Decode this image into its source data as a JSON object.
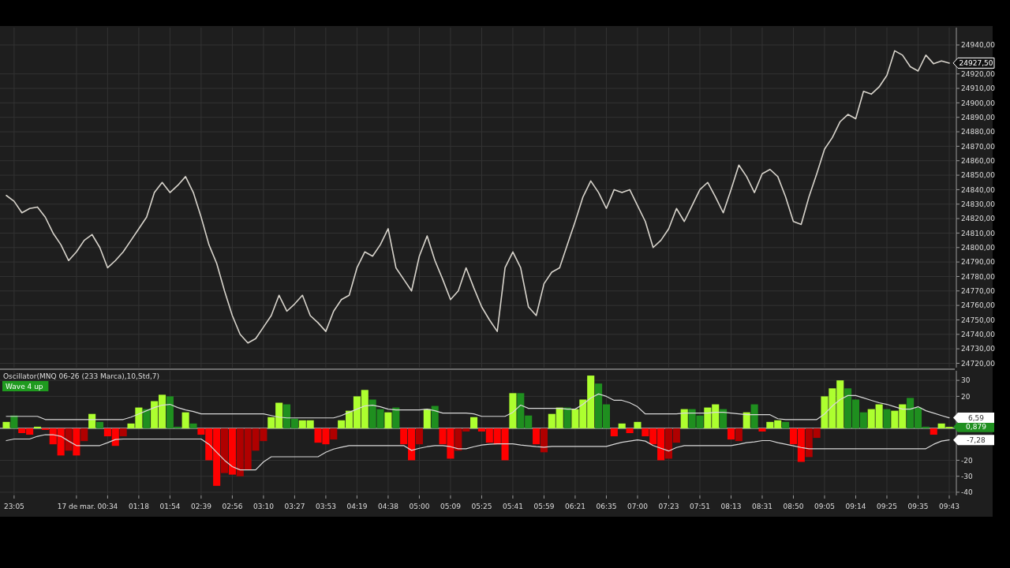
{
  "chart_data": [
    {
      "type": "line",
      "categories": [
        null,
        null,
        null,
        null,
        null,
        null,
        null,
        null,
        null,
        null,
        null,
        null,
        null,
        null,
        null,
        null,
        null,
        null,
        null,
        null,
        null,
        null,
        null,
        null,
        null,
        null,
        null,
        null,
        null,
        null,
        null,
        null,
        null,
        null,
        null,
        null,
        null,
        null,
        null,
        null,
        null,
        null,
        null,
        null,
        null,
        null,
        null,
        null,
        null,
        null,
        null,
        null,
        null,
        null,
        null,
        null,
        null,
        null,
        null,
        null,
        null,
        null,
        null,
        null,
        null,
        null,
        null,
        null,
        null,
        null,
        null,
        null,
        null,
        null,
        null,
        null,
        null,
        null,
        null,
        null,
        null,
        null,
        null,
        null,
        null,
        null,
        null,
        null,
        null,
        null,
        null,
        null,
        null,
        null,
        null,
        null,
        null,
        null,
        null,
        null,
        null,
        null,
        null,
        null,
        null,
        null,
        null,
        null,
        null,
        null,
        null,
        null,
        null,
        null,
        null,
        null,
        null,
        null,
        null,
        null,
        null,
        null
      ],
      "series": [
        {
          "color": "#d8d4cc",
          "values": [
            24836,
            24832,
            24824,
            24827,
            24828,
            24821,
            24810,
            24802,
            24791,
            24797,
            24805,
            24809,
            24800,
            24786,
            24791,
            24797,
            24805,
            24813,
            24821,
            24838,
            24845,
            24838,
            24843,
            24849,
            24838,
            24821,
            24802,
            24789,
            24770,
            24753,
            24740,
            24734,
            24737,
            24745,
            24753,
            24767,
            24756,
            24761,
            24767,
            24753,
            24748,
            24742,
            24756,
            24764,
            24767,
            24786,
            24797,
            24794,
            24802,
            24813,
            24786,
            24778,
            24770,
            24794,
            24808,
            24791,
            24778,
            24764,
            24770,
            24786,
            24772,
            24759,
            24750,
            24742,
            24786,
            24797,
            24786,
            24759,
            24753,
            24775,
            24783,
            24786,
            24802,
            24818,
            24835,
            24846,
            24838,
            24827,
            24840,
            24838,
            24840,
            24829,
            24818,
            24800,
            24805,
            24813,
            24827,
            24818,
            24829,
            24840,
            24845,
            24835,
            24824,
            24840,
            24857,
            24849,
            24838,
            24851,
            24854,
            24849,
            24835,
            24818,
            24816,
            24835,
            24851,
            24868,
            24876,
            24887,
            24892,
            24889,
            24908,
            24906,
            24911,
            24919,
            24936,
            24933,
            24925,
            24922,
            24933,
            24927,
            24929,
            24927.5
          ]
        }
      ],
      "ylim": [
        24717,
        24952
      ],
      "yticks": [
        {
          "value": 24720,
          "label": "24720,00"
        },
        {
          "value": 24730,
          "label": "24730,00"
        },
        {
          "value": 24740,
          "label": "24740,00"
        },
        {
          "value": 24750,
          "label": "24750,00"
        },
        {
          "value": 24760,
          "label": "24760,00"
        },
        {
          "value": 24770,
          "label": "24770,00"
        },
        {
          "value": 24780,
          "label": "24780,00"
        },
        {
          "value": 24790,
          "label": "24790,00"
        },
        {
          "value": 24800,
          "label": "24800,00"
        },
        {
          "value": 24810,
          "label": "24810,00"
        },
        {
          "value": 24820,
          "label": "24820,00"
        },
        {
          "value": 24830,
          "label": "24830,00"
        },
        {
          "value": 24840,
          "label": "24840,00"
        },
        {
          "value": 24850,
          "label": "24850,00"
        },
        {
          "value": 24860,
          "label": "24860,00"
        },
        {
          "value": 24870,
          "label": "24870,00"
        },
        {
          "value": 24880,
          "label": "24880,00"
        },
        {
          "value": 24890,
          "label": "24890,00"
        },
        {
          "value": 24900,
          "label": "24900,00"
        },
        {
          "value": 24910,
          "label": "24910,00"
        },
        {
          "value": 24920,
          "label": "24920,00"
        },
        {
          "value": 24940,
          "label": "24940,00"
        }
      ],
      "grid": true,
      "tick_labels": "y",
      "annotations": [
        "24927,50"
      ]
    },
    {
      "type": "bar",
      "title": "Oscillator(MNQ 06-26 (233 Marca),10,Std,7)",
      "categories": [
        null,
        "23:05",
        null,
        null,
        null,
        null,
        null,
        null,
        null,
        "17 de mar.",
        null,
        null,
        null,
        "00:34",
        null,
        null,
        null,
        "01:18",
        null,
        null,
        null,
        "01:54",
        null,
        null,
        null,
        "02:39",
        null,
        null,
        null,
        "02:56",
        null,
        null,
        null,
        "03:10",
        null,
        null,
        null,
        "03:27",
        null,
        null,
        null,
        "03:53",
        null,
        null,
        null,
        "04:19",
        null,
        null,
        null,
        "04:38",
        null,
        null,
        null,
        "05:00",
        null,
        null,
        null,
        "05:09",
        null,
        null,
        null,
        "05:25",
        null,
        null,
        null,
        "05:41",
        null,
        null,
        null,
        "05:59",
        null,
        null,
        null,
        "06:21",
        null,
        null,
        null,
        "06:35",
        null,
        null,
        null,
        "07:00",
        null,
        null,
        null,
        "07:23",
        null,
        null,
        null,
        "07:51",
        null,
        null,
        null,
        "08:13",
        null,
        null,
        null,
        "08:31",
        null,
        null,
        null,
        "08:50",
        null,
        null,
        null,
        "09:05",
        null,
        null,
        null,
        "09:14",
        null,
        null,
        null,
        "09:25",
        null,
        null,
        null,
        "09:35",
        null,
        null,
        null,
        "09:43"
      ],
      "series": [
        {
          "values": [
            4,
            8,
            -3,
            -4,
            1,
            -1,
            -10,
            -17,
            -14,
            -17,
            -8,
            9,
            4,
            -5,
            -11,
            -5,
            3,
            13,
            12,
            17,
            21,
            20,
            1,
            10,
            3,
            -4,
            -20,
            -36,
            -28,
            -29,
            -30,
            -26,
            -14,
            -8,
            7,
            16,
            15,
            6,
            5,
            5,
            -9,
            -10,
            -7,
            5,
            11,
            20,
            24,
            18,
            12,
            10,
            13,
            -10,
            -20,
            -10,
            12,
            14,
            -10,
            -19,
            -14,
            -2,
            7,
            -2,
            -9,
            -10,
            -20,
            22,
            22,
            8,
            -10,
            -15,
            9,
            13,
            13,
            12,
            18,
            33,
            28,
            15,
            -5,
            3,
            -3,
            4,
            -5,
            -10,
            -20,
            -19,
            -9,
            12,
            12,
            8,
            13,
            15,
            12,
            -7,
            -8,
            10,
            15,
            -2,
            4,
            5,
            4,
            -10,
            -21,
            -18,
            -6,
            20,
            25,
            30,
            25,
            18,
            10,
            12,
            15,
            12,
            11,
            15,
            19,
            13,
            1,
            -4,
            3,
            0.879
          ],
          "colors": [
            "#adff2f",
            "#1f8f1f",
            "#ff0000",
            "#ff0000",
            "#adff2f",
            "#ff0000",
            "#ff0000",
            "#ff0000",
            "#b00000",
            "#ff0000",
            "#b00000",
            "#adff2f",
            "#1f8f1f",
            "#ff0000",
            "#ff0000",
            "#b00000",
            "#adff2f",
            "#adff2f",
            "#1f8f1f",
            "#adff2f",
            "#adff2f",
            "#1f8f1f",
            "#1f8f1f",
            "#adff2f",
            "#1f8f1f",
            "#ff0000",
            "#ff0000",
            "#ff0000",
            "#b00000",
            "#ff0000",
            "#b00000",
            "#b00000",
            "#b00000",
            "#b00000",
            "#adff2f",
            "#adff2f",
            "#1f8f1f",
            "#1f8f1f",
            "#adff2f",
            "#adff2f",
            "#ff0000",
            "#ff0000",
            "#b00000",
            "#adff2f",
            "#adff2f",
            "#adff2f",
            "#adff2f",
            "#1f8f1f",
            "#1f8f1f",
            "#adff2f",
            "#1f8f1f",
            "#ff0000",
            "#ff0000",
            "#b00000",
            "#adff2f",
            "#1f8f1f",
            "#ff0000",
            "#ff0000",
            "#b00000",
            "#b00000",
            "#adff2f",
            "#ff0000",
            "#ff0000",
            "#ff0000",
            "#ff0000",
            "#adff2f",
            "#1f8f1f",
            "#1f8f1f",
            "#ff0000",
            "#b00000",
            "#adff2f",
            "#adff2f",
            "#1f8f1f",
            "#adff2f",
            "#adff2f",
            "#adff2f",
            "#1f8f1f",
            "#1f8f1f",
            "#ff0000",
            "#adff2f",
            "#ff0000",
            "#adff2f",
            "#ff0000",
            "#ff0000",
            "#ff0000",
            "#b00000",
            "#b00000",
            "#adff2f",
            "#1f8f1f",
            "#1f8f1f",
            "#adff2f",
            "#adff2f",
            "#1f8f1f",
            "#ff0000",
            "#b00000",
            "#adff2f",
            "#1f8f1f",
            "#ff0000",
            "#adff2f",
            "#adff2f",
            "#1f8f1f",
            "#ff0000",
            "#ff0000",
            "#b00000",
            "#b00000",
            "#adff2f",
            "#adff2f",
            "#adff2f",
            "#1f8f1f",
            "#1f8f1f",
            "#1f8f1f",
            "#adff2f",
            "#adff2f",
            "#1f8f1f",
            "#adff2f",
            "#adff2f",
            "#1f8f1f",
            "#1f8f1f",
            "#1f8f1f",
            "#ff0000",
            "#adff2f",
            "#adff2f"
          ]
        },
        {
          "type": "line",
          "color": "#d9d9d9",
          "values": [
            7.5,
            7.5,
            7.5,
            7.5,
            7.5,
            5.5,
            5.5,
            5.5,
            5.5,
            5.5,
            5.5,
            5.5,
            5.5,
            5.5,
            5.5,
            5.5,
            7,
            9,
            11,
            13,
            14.5,
            15,
            13,
            11.5,
            10.5,
            9,
            9,
            9,
            9,
            9,
            9,
            9,
            9,
            9,
            8,
            7,
            6.5,
            6.5,
            6.5,
            6.5,
            6.5,
            6.5,
            6.5,
            8,
            10,
            12,
            14,
            14.5,
            13.5,
            12,
            11.5,
            11.5,
            11.5,
            11.5,
            12,
            11,
            9.5,
            9.5,
            9.5,
            9.5,
            9,
            7.5,
            7.5,
            7.5,
            7.5,
            10,
            14.5,
            12.5,
            12.5,
            12.5,
            12.5,
            12.5,
            12,
            12,
            15,
            19,
            21.5,
            20,
            17.5,
            17.5,
            16,
            13.5,
            9,
            9,
            9,
            9,
            9,
            9.5,
            9.5,
            9.5,
            9.5,
            10,
            10,
            9.5,
            9,
            8.5,
            8.5,
            8.5,
            8.5,
            6,
            5.5,
            5.5,
            5.5,
            5.5,
            5.5,
            9,
            14,
            18,
            20.5,
            20.5,
            19,
            17.5,
            16,
            15,
            13.5,
            12,
            12,
            13.5,
            11,
            9.5,
            8,
            6.59
          ]
        },
        {
          "type": "line",
          "color": "#d9d9d9",
          "values": [
            -7.7,
            -6.7,
            -6.7,
            -6.7,
            -5,
            -4,
            -4,
            -5,
            -8,
            -10.8,
            -10.8,
            -10.8,
            -10.8,
            -9,
            -7,
            -6.7,
            -6.7,
            -6.7,
            -6.7,
            -6.7,
            -6.7,
            -6.7,
            -6.7,
            -6.7,
            -6.7,
            -6.7,
            -10,
            -15,
            -20,
            -24,
            -26,
            -26,
            -26,
            -21,
            -17.8,
            -17.8,
            -17.8,
            -17.8,
            -17.8,
            -17.8,
            -17.8,
            -15,
            -13,
            -11.8,
            -10.8,
            -10.8,
            -10.8,
            -10.8,
            -10.8,
            -10.8,
            -10.8,
            -10.8,
            -13.8,
            -12.5,
            -11.5,
            -10.8,
            -10.8,
            -11.5,
            -12.8,
            -12.8,
            -11.5,
            -10.5,
            -10,
            -9.7,
            -9.7,
            -9.7,
            -10.5,
            -11,
            -11.5,
            -11.8,
            -11.3,
            -11.3,
            -11.3,
            -11.3,
            -11.3,
            -11.3,
            -11.3,
            -11.3,
            -10,
            -8.7,
            -8,
            -7.3,
            -8,
            -10.8,
            -12.5,
            -14.2,
            -12,
            -10.8,
            -10.8,
            -10.8,
            -10.8,
            -10.8,
            -10.8,
            -10.8,
            -10,
            -9,
            -8.5,
            -7.7,
            -7.7,
            -9,
            -10,
            -11,
            -12,
            -12.8,
            -12.8,
            -12.8,
            -12.8,
            -12.8,
            -12.8,
            -12.8,
            -12.8,
            -12.8,
            -12.8,
            -12.8,
            -12.8,
            -12.8,
            -12.8,
            -12.8,
            -12.8,
            -10,
            -8,
            -7.28
          ]
        }
      ],
      "ylim": [
        -42,
        36
      ],
      "yticks": [
        30,
        20,
        0,
        -20,
        -30,
        -40
      ],
      "grid": true,
      "ref_lines": [
        {
          "axis": "y",
          "value": 0,
          "color": "#e8e8e8"
        }
      ],
      "annotations": [
        "Wave 4 up",
        "0,879",
        "6,59",
        "-7,28"
      ]
    }
  ]
}
